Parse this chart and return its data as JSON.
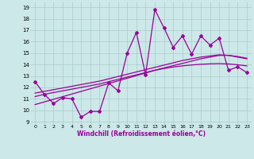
{
  "x": [
    0,
    1,
    2,
    3,
    4,
    5,
    6,
    7,
    8,
    9,
    10,
    11,
    12,
    13,
    14,
    15,
    16,
    17,
    18,
    19,
    20,
    21,
    22,
    23
  ],
  "y_main": [
    12.5,
    11.4,
    10.6,
    11.1,
    11.0,
    9.4,
    9.9,
    9.9,
    12.4,
    11.7,
    15.0,
    16.8,
    13.1,
    18.8,
    17.2,
    15.5,
    16.5,
    14.9,
    16.5,
    15.7,
    16.3,
    13.5,
    13.8,
    13.3
  ],
  "y_line1": [
    11.2,
    11.4,
    11.55,
    11.7,
    11.85,
    12.0,
    12.15,
    12.3,
    12.5,
    12.7,
    12.9,
    13.1,
    13.3,
    13.5,
    13.7,
    13.9,
    14.1,
    14.3,
    14.5,
    14.65,
    14.8,
    14.8,
    14.7,
    14.55
  ],
  "y_line2": [
    11.5,
    11.65,
    11.8,
    11.95,
    12.1,
    12.25,
    12.4,
    12.55,
    12.75,
    12.95,
    13.15,
    13.35,
    13.55,
    13.75,
    13.95,
    14.15,
    14.35,
    14.5,
    14.65,
    14.75,
    14.85,
    14.8,
    14.65,
    14.5
  ],
  "y_line3": [
    10.5,
    10.73,
    10.96,
    11.19,
    11.42,
    11.65,
    11.88,
    12.11,
    12.34,
    12.57,
    12.8,
    13.03,
    13.26,
    13.49,
    13.65,
    13.78,
    13.88,
    13.96,
    14.02,
    14.06,
    14.08,
    14.05,
    13.98,
    13.88
  ],
  "color_main": "#990099",
  "color_line": "#990099",
  "bg_color": "#cce8e8",
  "grid_color": "#aacccc",
  "ylabel_vals": [
    9,
    10,
    11,
    12,
    13,
    14,
    15,
    16,
    17,
    18,
    19
  ],
  "xlabel_vals": [
    0,
    1,
    2,
    3,
    4,
    5,
    6,
    7,
    8,
    9,
    10,
    11,
    12,
    13,
    14,
    15,
    16,
    17,
    18,
    19,
    20,
    21,
    22,
    23
  ],
  "xlabel": "Windchill (Refroidissement éolien,°C)",
  "ylim": [
    8.8,
    19.5
  ],
  "xlim": [
    -0.5,
    23.5
  ],
  "marker": "D",
  "markersize": 2.0,
  "linewidth": 0.9
}
